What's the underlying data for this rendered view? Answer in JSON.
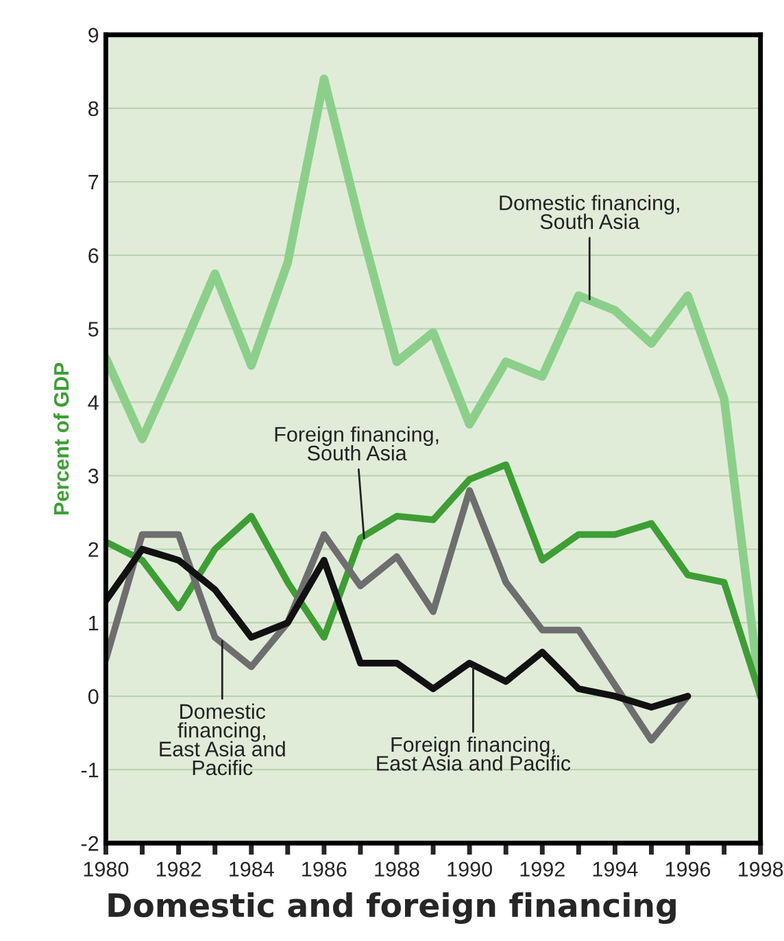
{
  "chart_data": {
    "type": "line",
    "title": "Domestic and foreign financing",
    "ylabel": "Percent of GDP",
    "x": [
      1980,
      1981,
      1982,
      1983,
      1984,
      1985,
      1986,
      1987,
      1988,
      1989,
      1990,
      1991,
      1992,
      1993,
      1994,
      1995,
      1996,
      1997,
      1998
    ],
    "series": [
      {
        "color": "#8ccf8a",
        "values": [
          4.6,
          3.5,
          4.6,
          5.75,
          4.5,
          5.9,
          8.4,
          6.4,
          4.55,
          4.95,
          3.7,
          4.55,
          4.35,
          5.45,
          5.25,
          4.8,
          5.45,
          4.05,
          0
        ]
      },
      {
        "color": "#3e9e35",
        "values": [
          2.1,
          1.85,
          1.2,
          2.0,
          2.45,
          1.55,
          0.8,
          2.15,
          2.45,
          2.4,
          2.95,
          3.15,
          1.85,
          2.2,
          2.2,
          2.35,
          1.65,
          1.55,
          0
        ]
      },
      {
        "color": "#6e6e6e",
        "values": [
          0.5,
          2.2,
          2.2,
          0.8,
          0.4,
          1.0,
          2.2,
          1.5,
          1.9,
          1.15,
          2.8,
          1.55,
          0.9,
          0.9,
          0.15,
          -0.6,
          0,
          null,
          null
        ]
      },
      {
        "color": "#111111",
        "values": [
          1.3,
          2.0,
          1.85,
          1.45,
          0.8,
          1.0,
          1.85,
          0.45,
          0.45,
          0.1,
          0.45,
          0.2,
          0.6,
          0.1,
          0.0,
          -0.15,
          0,
          null,
          null
        ]
      }
    ],
    "xlim": [
      1980,
      1998
    ],
    "ylim": [
      -2,
      9
    ],
    "xticks": [
      1980,
      {
        "value": 1981,
        "label": null
      },
      1982,
      {
        "value": 1983,
        "label": null
      },
      1984,
      {
        "value": 1985,
        "label": null
      },
      1986,
      {
        "value": 1987,
        "label": null
      },
      1988,
      {
        "value": 1989,
        "label": null
      },
      1990,
      {
        "value": 1991,
        "label": null
      },
      1992,
      {
        "value": 1993,
        "label": null
      },
      1994,
      {
        "value": 1995,
        "label": null
      },
      1996,
      {
        "value": 1997,
        "label": null
      },
      1998
    ],
    "yticks": [
      -2,
      -1,
      0,
      1,
      2,
      3,
      4,
      5,
      6,
      7,
      8,
      9
    ],
    "grid": "y",
    "marker": "none",
    "line_style": "solid",
    "legend": false,
    "annotations": [
      {
        "text": "Domestic financing,\nSouth Asia",
        "x": 1993.3,
        "y": 5.4
      },
      {
        "text": "Foreign financing,\nSouth Asia",
        "x": 1987.1,
        "y": 2.15
      },
      {
        "text": "Domestic\nfinancing,\nEast Asia and\nPacific",
        "x": 1983.2,
        "y": 0.75
      },
      {
        "text": "Foreign financing,\nEast Asia and Pacific",
        "x": 1990.1,
        "y": 0.4
      }
    ]
  }
}
